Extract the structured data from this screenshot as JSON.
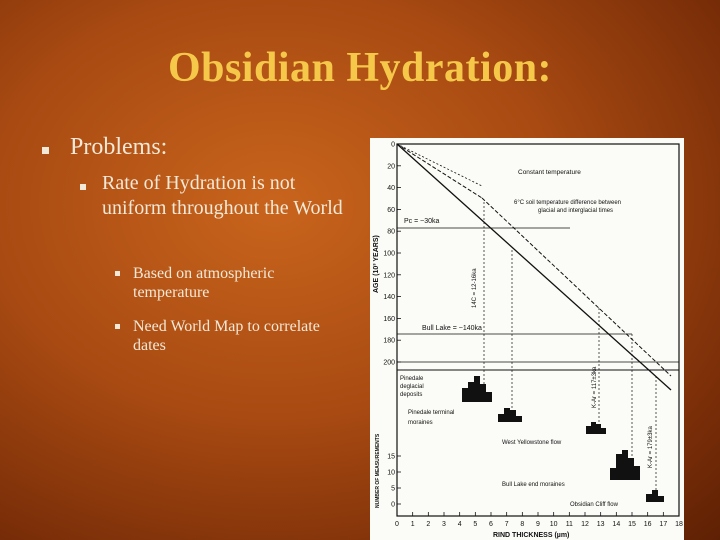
{
  "slide": {
    "title": "Obsidian Hydration:",
    "bullets": [
      {
        "level": 1,
        "text": "Problems:"
      },
      {
        "level": 2,
        "text": "Rate of Hydration is not uniform throughout the World"
      },
      {
        "level": 3,
        "text": "Based on atmospheric temperature"
      },
      {
        "level": 3,
        "text": "Need World Map to correlate dates"
      }
    ]
  },
  "figure": {
    "y_axis_label": "AGE (10³ YEARS)",
    "y_ticks": [
      "0",
      "20",
      "40",
      "60",
      "80",
      "100",
      "120",
      "140",
      "160",
      "180",
      "200"
    ],
    "x_axis_label": "RIND THICKNESS (µm)",
    "x_ticks": [
      "0",
      "1",
      "2",
      "3",
      "4",
      "5",
      "6",
      "7",
      "8",
      "9",
      "10",
      "11",
      "12",
      "13",
      "14",
      "15",
      "16",
      "17",
      "18"
    ],
    "lower_y_axis_label": "NUMBER OF MEASUREMENTS",
    "lower_y_ticks": [
      "15",
      "10",
      "5",
      "0"
    ],
    "annotations": {
      "constant_temperature": "Constant temperature",
      "soil_temp_line1": "6°C soil temperature difference between",
      "soil_temp_line2": "glacial and interglacial times",
      "pc": "Pc = ~30ka",
      "bull_lake": "Bull Lake = ~140ka",
      "c14": "14C = 12-16ka",
      "kar_117": "K-Ar = 117±3ka",
      "kar_179": "K-Ar = 179±3ka",
      "pinedale_deglacial": [
        "Pinedale",
        "deglacial",
        "deposits"
      ],
      "pinedale_terminal": [
        "Pinedale terminal",
        "moraines"
      ],
      "west_yellowstone": "West Yellowstone flow",
      "bull_lake_end": "Bull Lake end moraines",
      "obsidian_cliff": "Obsidian Cliff flow"
    }
  },
  "colors": {
    "title": "#f5c84a",
    "text": "#f3e9d8",
    "background": "#a84a12"
  },
  "icons": [
    "square-bullet-icon"
  ]
}
